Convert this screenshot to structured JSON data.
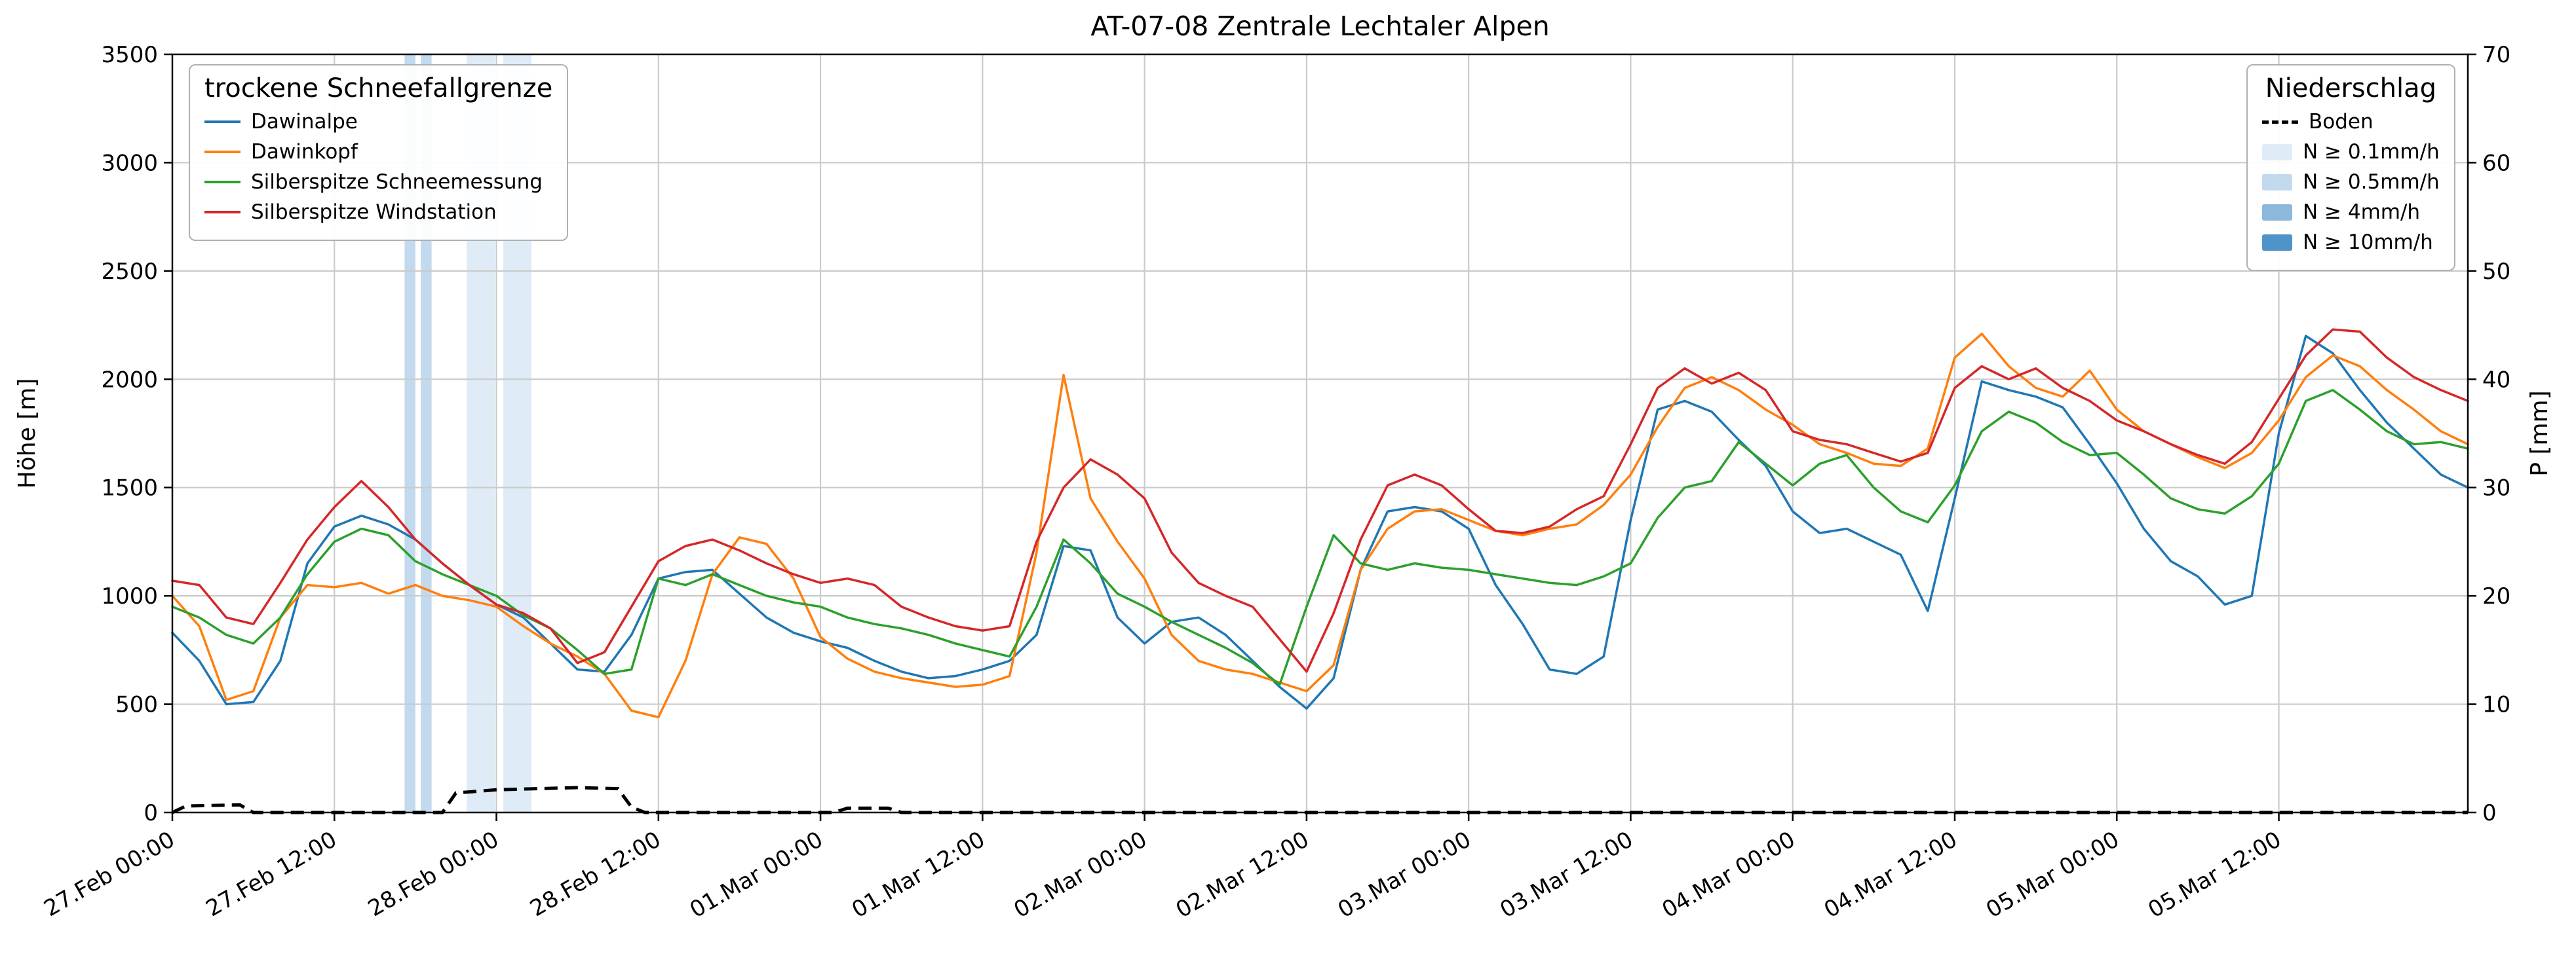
{
  "title": "AT-07-08 Zentrale Lechtaler Alpen",
  "axes": {
    "y_left_label": "Höhe [m]",
    "y_right_label": "P [mm]",
    "y_left_domain": [
      0,
      3500
    ],
    "y_right_domain": [
      0,
      70
    ],
    "y_left_ticks": [
      0,
      500,
      1000,
      1500,
      2000,
      2500,
      3000,
      3500
    ],
    "y_right_ticks": [
      0,
      10,
      20,
      30,
      40,
      50,
      60,
      70
    ],
    "x_domain_hours": [
      0,
      170
    ],
    "x_tick_hours": [
      0,
      12,
      24,
      36,
      48,
      60,
      72,
      84,
      96,
      108,
      120,
      132,
      144,
      156
    ],
    "x_tick_labels": [
      "27.Feb 00:00",
      "27.Feb 12:00",
      "28.Feb 00:00",
      "28.Feb 12:00",
      "01.Mar 00:00",
      "01.Mar 12:00",
      "02.Mar 00:00",
      "02.Mar 12:00",
      "03.Mar 00:00",
      "03.Mar 12:00",
      "04.Mar 00:00",
      "04.Mar 12:00",
      "05.Mar 00:00",
      "05.Mar 12:00"
    ]
  },
  "legend_snowline": {
    "title": "trockene Schneefallgrenze",
    "items": [
      {
        "label": "Dawinalpe",
        "color": "#1f77b4"
      },
      {
        "label": "Dawinkopf",
        "color": "#ff7f0e"
      },
      {
        "label": "Silberspitze Schneemessung",
        "color": "#2ca02c"
      },
      {
        "label": "Silberspitze Windstation",
        "color": "#d62728"
      }
    ]
  },
  "legend_precip": {
    "title": "Niederschlag",
    "boden_label": "Boden",
    "items": [
      {
        "label": "N ≥ 0.1mm/h",
        "color": "#dfecf7"
      },
      {
        "label": "N ≥ 0.5mm/h",
        "color": "#c2d9ee"
      },
      {
        "label": "N ≥ 4mm/h",
        "color": "#8cb8dc"
      },
      {
        "label": "N ≥ 10mm/h",
        "color": "#4f94c8"
      }
    ]
  },
  "chart_data": {
    "type": "line",
    "title": "AT-07-08 Zentrale Lechtaler Alpen",
    "xlabel": "",
    "ylabel_left": "Höhe [m]",
    "ylabel_right": "P [mm]",
    "x_unit": "hours since 27.Feb 00:00",
    "x_hours": [
      0,
      2,
      4,
      6,
      8,
      10,
      12,
      14,
      16,
      18,
      20,
      22,
      24,
      26,
      28,
      30,
      32,
      34,
      36,
      38,
      40,
      42,
      44,
      46,
      48,
      50,
      52,
      54,
      56,
      58,
      60,
      62,
      64,
      66,
      68,
      70,
      72,
      74,
      76,
      78,
      80,
      82,
      84,
      86,
      88,
      90,
      92,
      94,
      96,
      98,
      100,
      102,
      104,
      106,
      108,
      110,
      112,
      114,
      116,
      118,
      120,
      122,
      124,
      126,
      128,
      130,
      132,
      134,
      136,
      138,
      140,
      142,
      144,
      146,
      148,
      150,
      152,
      154,
      156,
      158,
      160,
      162,
      164,
      166,
      168,
      170
    ],
    "series": [
      {
        "name": "Dawinalpe",
        "color": "#1f77b4",
        "axis": "left",
        "values": [
          830,
          700,
          500,
          510,
          700,
          1150,
          1320,
          1370,
          1330,
          1260,
          1150,
          1050,
          960,
          900,
          780,
          660,
          650,
          820,
          1080,
          1110,
          1120,
          1010,
          900,
          830,
          790,
          760,
          700,
          650,
          620,
          630,
          660,
          700,
          820,
          1230,
          1210,
          900,
          780,
          880,
          900,
          820,
          700,
          580,
          480,
          620,
          1120,
          1390,
          1410,
          1390,
          1310,
          1050,
          870,
          660,
          640,
          720,
          1350,
          1860,
          1900,
          1850,
          1720,
          1600,
          1390,
          1290,
          1310,
          1250,
          1190,
          930,
          1450,
          1990,
          1950,
          1920,
          1870,
          1700,
          1520,
          1310,
          1160,
          1090,
          960,
          1000,
          1750,
          2200,
          2120,
          1950,
          1800,
          1680,
          1560,
          1500
        ]
      },
      {
        "name": "Dawinkopf",
        "color": "#ff7f0e",
        "axis": "left",
        "values": [
          1000,
          860,
          520,
          560,
          900,
          1050,
          1040,
          1060,
          1010,
          1050,
          1000,
          980,
          950,
          860,
          780,
          720,
          640,
          470,
          440,
          700,
          1100,
          1270,
          1240,
          1080,
          810,
          710,
          650,
          620,
          600,
          580,
          590,
          630,
          1200,
          2020,
          1450,
          1250,
          1080,
          820,
          700,
          660,
          640,
          600,
          560,
          680,
          1120,
          1310,
          1390,
          1400,
          1350,
          1300,
          1280,
          1310,
          1330,
          1420,
          1560,
          1780,
          1960,
          2010,
          1950,
          1860,
          1790,
          1700,
          1660,
          1610,
          1600,
          1680,
          2100,
          2210,
          2060,
          1960,
          1920,
          2040,
          1860,
          1760,
          1700,
          1640,
          1590,
          1660,
          1810,
          2010,
          2110,
          2060,
          1950,
          1860,
          1760,
          1700
        ]
      },
      {
        "name": "Silberspitze Schneemessung",
        "color": "#2ca02c",
        "axis": "left",
        "values": [
          950,
          900,
          820,
          780,
          900,
          1100,
          1250,
          1310,
          1280,
          1160,
          1100,
          1050,
          1000,
          910,
          850,
          750,
          640,
          660,
          1080,
          1050,
          1100,
          1050,
          1000,
          970,
          950,
          900,
          870,
          850,
          820,
          780,
          750,
          720,
          950,
          1260,
          1150,
          1010,
          950,
          880,
          820,
          760,
          690,
          590,
          950,
          1280,
          1150,
          1120,
          1150,
          1130,
          1120,
          1100,
          1080,
          1060,
          1050,
          1090,
          1150,
          1360,
          1500,
          1530,
          1710,
          1610,
          1510,
          1610,
          1650,
          1500,
          1390,
          1340,
          1510,
          1760,
          1850,
          1800,
          1710,
          1650,
          1660,
          1560,
          1450,
          1400,
          1380,
          1460,
          1610,
          1900,
          1950,
          1860,
          1760,
          1700,
          1710,
          1680
        ]
      },
      {
        "name": "Silberspitze Windstation",
        "color": "#d62728",
        "axis": "left",
        "values": [
          1070,
          1050,
          900,
          870,
          1060,
          1260,
          1410,
          1530,
          1410,
          1260,
          1150,
          1050,
          960,
          920,
          850,
          690,
          740,
          950,
          1160,
          1230,
          1260,
          1210,
          1150,
          1100,
          1060,
          1080,
          1050,
          950,
          900,
          860,
          840,
          860,
          1250,
          1500,
          1630,
          1560,
          1450,
          1200,
          1060,
          1000,
          950,
          800,
          650,
          920,
          1260,
          1510,
          1560,
          1510,
          1400,
          1300,
          1290,
          1320,
          1400,
          1460,
          1700,
          1960,
          2050,
          1980,
          2030,
          1950,
          1760,
          1720,
          1700,
          1660,
          1620,
          1660,
          1960,
          2060,
          2000,
          2050,
          1960,
          1900,
          1810,
          1760,
          1700,
          1650,
          1610,
          1710,
          1910,
          2110,
          2230,
          2220,
          2100,
          2010,
          1950,
          1900
        ]
      }
    ],
    "boden": {
      "name": "Boden",
      "axis": "right",
      "unit": "mm",
      "x": [
        0,
        1,
        5,
        6,
        20,
        21,
        24,
        30,
        33,
        34,
        35,
        49,
        50,
        53,
        54,
        170
      ],
      "values": [
        0,
        0.6,
        0.7,
        0,
        0,
        1.8,
        2.1,
        2.3,
        2.2,
        0.5,
        0,
        0,
        0.4,
        0.4,
        0,
        0
      ]
    },
    "precip_bands": [
      {
        "start_hour": 17.2,
        "end_hour": 18.0,
        "level": "N ≥ 0.5mm/h",
        "color": "#c2d9ee"
      },
      {
        "start_hour": 18.4,
        "end_hour": 19.2,
        "level": "N ≥ 0.5mm/h",
        "color": "#c2d9ee"
      },
      {
        "start_hour": 21.8,
        "end_hour": 23.9,
        "level": "N ≥ 0.1mm/h",
        "color": "#dfecf7"
      },
      {
        "start_hour": 24.5,
        "end_hour": 26.6,
        "level": "N ≥ 0.1mm/h",
        "color": "#dfecf7"
      }
    ],
    "legend_position": {
      "snowline": "upper left",
      "precip": "upper right"
    },
    "grid": true
  }
}
